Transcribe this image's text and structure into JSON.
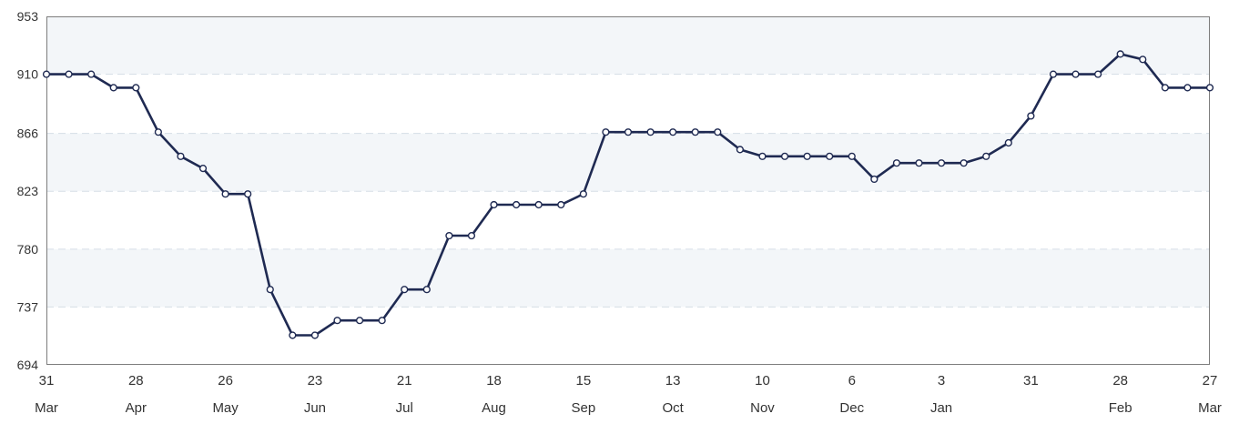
{
  "chart_data": {
    "type": "line",
    "title": "",
    "xlabel": "",
    "ylabel": "",
    "ylim": [
      694,
      953
    ],
    "y_ticks": [
      "694",
      "737",
      "780",
      "823",
      "866",
      "910",
      "953"
    ],
    "x_ticks": [
      {
        "day": "31",
        "month": "Mar"
      },
      {
        "day": "28",
        "month": "Apr"
      },
      {
        "day": "26",
        "month": "May"
      },
      {
        "day": "23",
        "month": "Jun"
      },
      {
        "day": "21",
        "month": "Jul"
      },
      {
        "day": "18",
        "month": "Aug"
      },
      {
        "day": "15",
        "month": "Sep"
      },
      {
        "day": "13",
        "month": "Oct"
      },
      {
        "day": "10",
        "month": "Nov"
      },
      {
        "day": "6",
        "month": "Dec"
      },
      {
        "day": "3",
        "month": "Jan"
      },
      {
        "day": "31",
        "month": ""
      },
      {
        "day": "28",
        "month": "Feb"
      },
      {
        "day": "27",
        "month": "Mar"
      }
    ],
    "x_tick_indices": [
      0,
      4,
      8,
      12,
      16,
      20,
      24,
      28,
      32,
      36,
      40,
      44,
      48,
      52
    ],
    "grid": "horizontal dashed, alternating bands",
    "legend": "none",
    "series": [
      {
        "color": "#1f2a52",
        "values": [
          910,
          910,
          910,
          900,
          900,
          867,
          849,
          840,
          821,
          821,
          750,
          716,
          716,
          727,
          727,
          727,
          750,
          750,
          790,
          790,
          813,
          813,
          813,
          813,
          821,
          867,
          867,
          867,
          867,
          867,
          867,
          854,
          849,
          849,
          849,
          849,
          849,
          832,
          844,
          844,
          844,
          844,
          849,
          859,
          879,
          910,
          910,
          910,
          925,
          921,
          900,
          900,
          900
        ]
      }
    ]
  }
}
